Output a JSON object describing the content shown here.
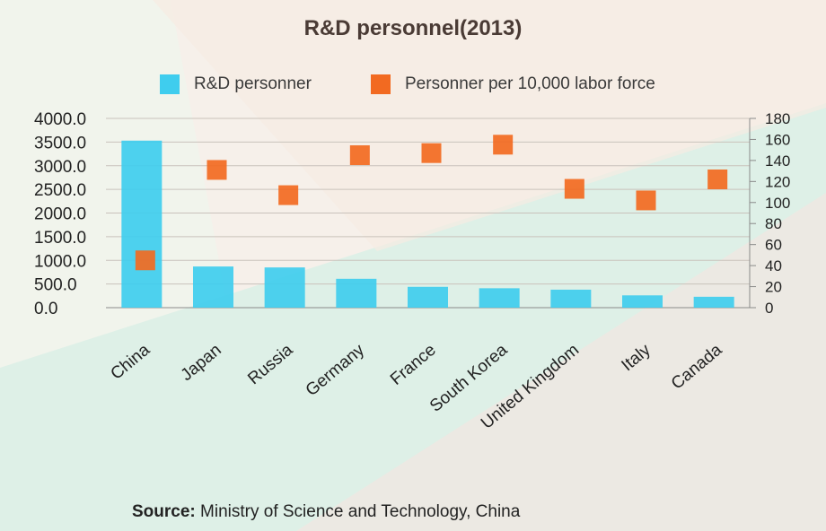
{
  "colors": {
    "bar": "#3fcdee",
    "marker": "#f26a21",
    "axis": "#8a8a8a",
    "text": "#222222"
  },
  "legend": {
    "bar_label": "R&D personner",
    "marker_label": "Personner per 10,000 labor force"
  },
  "source": {
    "label": "Source:",
    "text": " Ministry of Science and Technology, China"
  },
  "chart_data": {
    "type": "bar",
    "title": "R&D personnel(2013)",
    "categories": [
      "China",
      "Japan",
      "Russia",
      "Germany",
      "France",
      "South Korea",
      "United Kingdom",
      "Italy",
      "Canada"
    ],
    "series": [
      {
        "name": "R&D personner",
        "type": "bar",
        "axis": "left",
        "values": [
          3530,
          870,
          850,
          610,
          440,
          410,
          380,
          260,
          230
        ]
      },
      {
        "name": "Personner per 10,000 labor force",
        "type": "scatter",
        "axis": "right",
        "values": [
          45,
          131,
          107,
          145,
          147,
          155,
          113,
          102,
          122
        ]
      }
    ],
    "y_left": {
      "ylim": [
        0,
        4000
      ],
      "ticks": [
        "0.0",
        "500.0",
        "1000.0",
        "1500.0",
        "2000.0",
        "2500.0",
        "3000.0",
        "3500.0",
        "4000.0"
      ]
    },
    "y_right": {
      "ylim": [
        0,
        180
      ],
      "ticks": [
        "0",
        "20",
        "40",
        "60",
        "80",
        "100",
        "120",
        "140",
        "160",
        "180"
      ]
    },
    "legend_position": "top-center",
    "grid": true
  }
}
